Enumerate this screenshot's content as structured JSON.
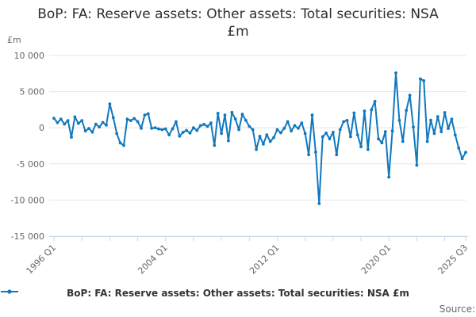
{
  "footer": {
    "source_label": "Source:"
  },
  "chart_data": {
    "type": "line",
    "title": "BoP: FA: Reserve assets: Other assets: Total securities: NSA £m",
    "title_line1": "BoP: FA: Reserve assets: Other assets: Total securities: NSA",
    "title_line2": "£m",
    "ylabel": "£m",
    "xlabel": "",
    "grid": true,
    "legend_position": "bottom",
    "ylim": [
      -15000,
      10000
    ],
    "y_ticks": [
      {
        "v": 10000,
        "label": "10 000"
      },
      {
        "v": 5000,
        "label": "5 000"
      },
      {
        "v": 0,
        "label": "0"
      },
      {
        "v": -5000,
        "label": "-5 000"
      },
      {
        "v": -10000,
        "label": "-10 000"
      },
      {
        "v": -15000,
        "label": "-15 000"
      }
    ],
    "x_tick_indices": [
      0,
      8,
      16,
      24,
      32,
      40,
      48,
      56,
      64,
      72,
      80,
      88,
      96,
      104,
      112,
      118
    ],
    "x_labels": [
      {
        "index": 0,
        "label": "1996 Q1"
      },
      {
        "index": 32,
        "label": "2004 Q1"
      },
      {
        "index": 64,
        "label": "2012 Q1"
      },
      {
        "index": 96,
        "label": "2020 Q1"
      },
      {
        "index": 118,
        "label": "2025 Q3"
      }
    ],
    "categories": [
      "1996 Q1",
      "1996 Q2",
      "1996 Q3",
      "1996 Q4",
      "1997 Q1",
      "1997 Q2",
      "1997 Q3",
      "1997 Q4",
      "1998 Q1",
      "1998 Q2",
      "1998 Q3",
      "1998 Q4",
      "1999 Q1",
      "1999 Q2",
      "1999 Q3",
      "1999 Q4",
      "2000 Q1",
      "2000 Q2",
      "2000 Q3",
      "2000 Q4",
      "2001 Q1",
      "2001 Q2",
      "2001 Q3",
      "2001 Q4",
      "2002 Q1",
      "2002 Q2",
      "2002 Q3",
      "2002 Q4",
      "2003 Q1",
      "2003 Q2",
      "2003 Q3",
      "2003 Q4",
      "2004 Q1",
      "2004 Q2",
      "2004 Q3",
      "2004 Q4",
      "2005 Q1",
      "2005 Q2",
      "2005 Q3",
      "2005 Q4",
      "2006 Q1",
      "2006 Q2",
      "2006 Q3",
      "2006 Q4",
      "2007 Q1",
      "2007 Q2",
      "2007 Q3",
      "2007 Q4",
      "2008 Q1",
      "2008 Q2",
      "2008 Q3",
      "2008 Q4",
      "2009 Q1",
      "2009 Q2",
      "2009 Q3",
      "2009 Q4",
      "2010 Q1",
      "2010 Q2",
      "2010 Q3",
      "2010 Q4",
      "2011 Q1",
      "2011 Q2",
      "2011 Q3",
      "2011 Q4",
      "2012 Q1",
      "2012 Q2",
      "2012 Q3",
      "2012 Q4",
      "2013 Q1",
      "2013 Q2",
      "2013 Q3",
      "2013 Q4",
      "2014 Q1",
      "2014 Q2",
      "2014 Q3",
      "2014 Q4",
      "2015 Q1",
      "2015 Q2",
      "2015 Q3",
      "2015 Q4",
      "2016 Q1",
      "2016 Q2",
      "2016 Q3",
      "2016 Q4",
      "2017 Q1",
      "2017 Q2",
      "2017 Q3",
      "2017 Q4",
      "2018 Q1",
      "2018 Q2",
      "2018 Q3",
      "2018 Q4",
      "2019 Q1",
      "2019 Q2",
      "2019 Q3",
      "2019 Q4",
      "2020 Q1",
      "2020 Q2",
      "2020 Q3",
      "2020 Q4",
      "2021 Q1",
      "2021 Q2",
      "2021 Q3",
      "2021 Q4",
      "2022 Q1",
      "2022 Q2",
      "2022 Q3",
      "2022 Q4",
      "2023 Q1",
      "2023 Q2",
      "2023 Q3",
      "2023 Q4",
      "2024 Q1",
      "2024 Q2",
      "2024 Q3",
      "2024 Q4",
      "2025 Q1",
      "2025 Q2",
      "2025 Q3"
    ],
    "series": [
      {
        "name": "BoP: FA: Reserve assets: Other assets: Total securities: NSA £m",
        "color": "#1178be",
        "values": [
          1300,
          700,
          1200,
          500,
          1000,
          -1300,
          1500,
          600,
          1000,
          -450,
          -100,
          -600,
          500,
          100,
          730,
          360,
          3300,
          1400,
          -800,
          -2100,
          -2450,
          1200,
          1000,
          1280,
          840,
          -80,
          1750,
          1940,
          -80,
          0,
          -150,
          -260,
          -150,
          -990,
          -150,
          840,
          -1170,
          -620,
          -370,
          -730,
          0,
          -370,
          300,
          470,
          190,
          660,
          -2450,
          2000,
          -800,
          1750,
          -1800,
          2130,
          1210,
          -260,
          1860,
          1020,
          190,
          -260,
          -3000,
          -1170,
          -2270,
          -990,
          -1900,
          -1350,
          -260,
          -690,
          -80,
          840,
          -440,
          300,
          -80,
          660,
          -800,
          -3730,
          1750,
          -3370,
          -10490,
          -1240,
          -730,
          -1530,
          -620,
          -3730,
          -260,
          840,
          1020,
          -1240,
          2050,
          -990,
          -2630,
          2300,
          -3000,
          2490,
          3650,
          -1540,
          -2080,
          -550,
          -6830,
          -440,
          7590,
          1020,
          -1900,
          2400,
          4500,
          110,
          -5190,
          6770,
          6500,
          -1900,
          1050,
          -800,
          1550,
          -550,
          2100,
          -100,
          1200,
          -1000,
          -2800,
          -4280,
          -3400
        ]
      }
    ],
    "colors": {
      "line": "#1178be",
      "gridline": "#e6e6e6",
      "axis_line": "#ccd6eb",
      "tick_label": "#666666",
      "title_text": "#2f2f2f"
    }
  }
}
